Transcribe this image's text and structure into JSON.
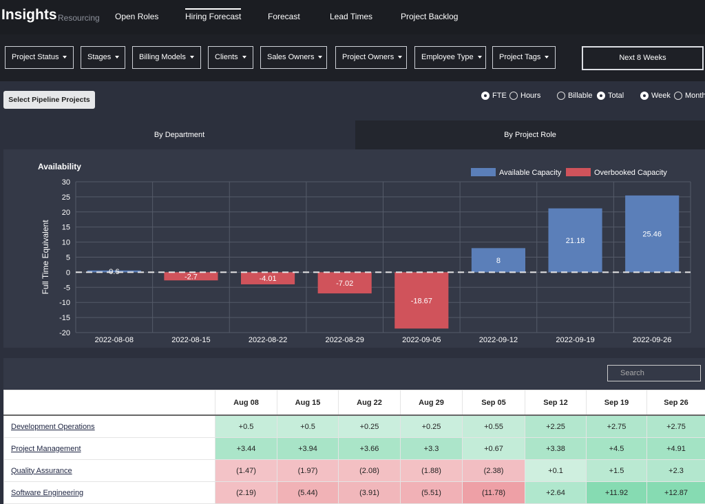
{
  "header": {
    "title": "Insights",
    "subtitle": "Resourcing",
    "nav": [
      {
        "label": "Open Roles",
        "active": false
      },
      {
        "label": "Hiring Forecast",
        "active": true
      },
      {
        "label": "Forecast",
        "active": false
      },
      {
        "label": "Lead Times",
        "active": false
      },
      {
        "label": "Project Backlog",
        "active": false
      }
    ]
  },
  "filters": [
    "Project Status",
    "Stages",
    "Billing Models",
    "Clients",
    "Sales Owners",
    "Project Owners",
    "Employee Type",
    "Project Tags"
  ],
  "date_range": "Next 8 Weeks",
  "pipeline_button": "Select Pipeline Projects",
  "toggles": [
    [
      {
        "label": "FTE",
        "checked": true
      },
      {
        "label": "Hours",
        "checked": false
      }
    ],
    [
      {
        "label": "Billable",
        "checked": false
      },
      {
        "label": "Total",
        "checked": true
      }
    ],
    [
      {
        "label": "Week",
        "checked": true
      },
      {
        "label": "Month",
        "checked": false
      }
    ]
  ],
  "tabs": [
    "By Department",
    "By Project Role"
  ],
  "chart_data": {
    "type": "bar",
    "title": "Availability",
    "ylabel": "Full Time Equivalent",
    "categories": [
      "2022-08-08",
      "2022-08-15",
      "2022-08-22",
      "2022-08-29",
      "2022-09-05",
      "2022-09-12",
      "2022-09-19",
      "2022-09-26"
    ],
    "series": [
      {
        "name": "Available Capacity",
        "color": "#5b7fb9",
        "values": [
          0.6,
          null,
          null,
          null,
          null,
          8,
          21.18,
          25.46
        ]
      },
      {
        "name": "Overbooked Capacity",
        "color": "#d0535b",
        "values": [
          null,
          -2.7,
          -4.01,
          -7.02,
          -18.67,
          null,
          null,
          null
        ]
      }
    ],
    "ylim": [
      -20,
      30
    ],
    "yticks": [
      -20,
      -15,
      -10,
      -5,
      0,
      5,
      10,
      15,
      20,
      25,
      30
    ],
    "grid": true
  },
  "search_placeholder": "Search",
  "table": {
    "columns": [
      "Aug 08",
      "Aug 15",
      "Aug 22",
      "Aug 29",
      "Sep 05",
      "Sep 12",
      "Sep 19",
      "Sep 26"
    ],
    "rows": [
      {
        "name": "Development Operations",
        "values": [
          "+0.5",
          "+0.5",
          "+0.25",
          "+0.25",
          "+0.55",
          "+2.25",
          "+2.75",
          "+2.75"
        ]
      },
      {
        "name": "Project Management",
        "values": [
          "+3.44",
          "+3.94",
          "+3.66",
          "+3.3",
          "+0.67",
          "+3.38",
          "+4.5",
          "+4.91"
        ]
      },
      {
        "name": "Quality Assurance",
        "values": [
          "(1.47)",
          "(1.97)",
          "(2.08)",
          "(1.88)",
          "(2.38)",
          "+0.1",
          "+1.5",
          "+2.3"
        ]
      },
      {
        "name": "Software Engineering",
        "values": [
          "(2.19)",
          "(5.44)",
          "(3.91)",
          "(5.51)",
          "(11.78)",
          "+2.64",
          "+11.92",
          "+12.87"
        ]
      }
    ]
  }
}
